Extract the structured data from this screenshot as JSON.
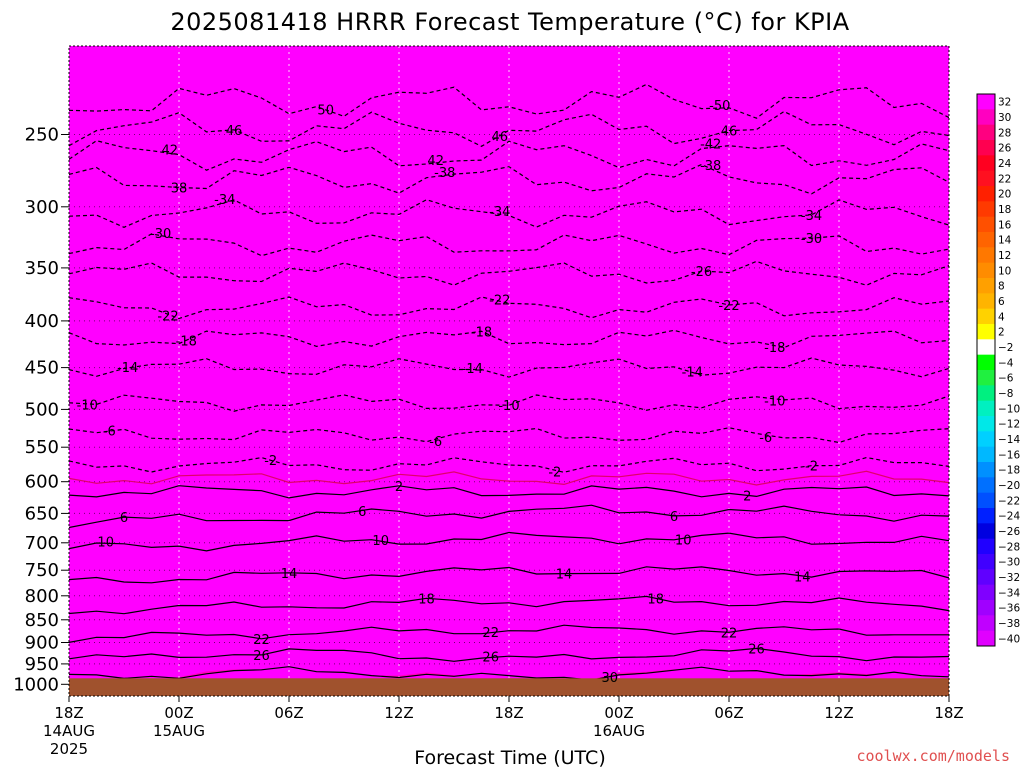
{
  "title": "2025081418 HRRR Forecast Temperature (°C) for KPIA",
  "credit": "coolwx.com/models",
  "chart_data": {
    "type": "heatmap",
    "title": "2025081418 HRRR Forecast Temperature (°C) for KPIA",
    "xlabel": "Forecast Time (UTC)",
    "ylabel": "",
    "y_scale": "log",
    "y_inverted": true,
    "y_ticks": [
      250,
      300,
      350,
      400,
      450,
      500,
      550,
      600,
      650,
      700,
      750,
      800,
      850,
      900,
      950,
      1000
    ],
    "y_range": [
      200,
      1030
    ],
    "surface_pressure": 985,
    "x_range": [
      0,
      48
    ],
    "x_unit": "forecast hour",
    "x_ticks": [
      {
        "hour": 0,
        "lines": [
          "18Z",
          "14AUG",
          "2025"
        ]
      },
      {
        "hour": 6,
        "lines": [
          "00Z",
          "15AUG"
        ]
      },
      {
        "hour": 12,
        "lines": [
          "06Z"
        ]
      },
      {
        "hour": 18,
        "lines": [
          "12Z"
        ]
      },
      {
        "hour": 24,
        "lines": [
          "18Z"
        ]
      },
      {
        "hour": 30,
        "lines": [
          "00Z",
          "16AUG"
        ]
      },
      {
        "hour": 36,
        "lines": [
          "06Z"
        ]
      },
      {
        "hour": 42,
        "lines": [
          "12Z"
        ]
      },
      {
        "hour": 48,
        "lines": [
          "18Z"
        ]
      }
    ],
    "colorbar": {
      "levels": [
        32,
        30,
        28,
        26,
        24,
        22,
        20,
        18,
        16,
        14,
        12,
        10,
        8,
        6,
        4,
        2,
        -2,
        -4,
        -6,
        -8,
        -10,
        -12,
        -14,
        -16,
        -18,
        -20,
        -22,
        -24,
        -26,
        -28,
        -30,
        -32,
        -34,
        -36,
        -38,
        -40
      ],
      "colors": [
        "#ff00ff",
        "#ff00c0",
        "#ff0080",
        "#ff0050",
        "#ff0020",
        "#ff1020",
        "#ff2000",
        "#ff3a00",
        "#ff5000",
        "#ff6400",
        "#ff7800",
        "#ff8c00",
        "#ffa000",
        "#ffb400",
        "#ffd200",
        "#ffff00",
        "#ffffff",
        "#00ff00",
        "#20f040",
        "#00f080",
        "#00f0c0",
        "#00e8e8",
        "#00d0ff",
        "#00b8ff",
        "#0090ff",
        "#0070ff",
        "#0050ff",
        "#0020ff",
        "#0000e0",
        "#2000ff",
        "#4000ff",
        "#6000ff",
        "#8000ff",
        "#a000ff",
        "#c000ff",
        "#e000ff"
      ]
    },
    "contours": [
      {
        "value": 30,
        "color": "black",
        "dashed": false,
        "labels": [
          {
            "hour": 29.5,
            "text": "30"
          }
        ]
      },
      {
        "value": 26,
        "color": "black",
        "dashed": false,
        "labels": [
          {
            "hour": 10.5,
            "text": "26"
          },
          {
            "hour": 23.0,
            "text": "26"
          },
          {
            "hour": 37.5,
            "text": "26"
          }
        ]
      },
      {
        "value": 22,
        "color": "black",
        "dashed": false,
        "labels": [
          {
            "hour": 10.5,
            "text": "22"
          },
          {
            "hour": 23.0,
            "text": "22"
          },
          {
            "hour": 36.0,
            "text": "22"
          }
        ]
      },
      {
        "value": 18,
        "color": "black",
        "dashed": false,
        "labels": [
          {
            "hour": 19.5,
            "text": "18"
          },
          {
            "hour": 32.0,
            "text": "18"
          }
        ]
      },
      {
        "value": 14,
        "color": "black",
        "dashed": false,
        "labels": [
          {
            "hour": 12.0,
            "text": "14"
          },
          {
            "hour": 27.0,
            "text": "14"
          },
          {
            "hour": 40.0,
            "text": "14"
          }
        ]
      },
      {
        "value": 10,
        "color": "black",
        "dashed": false,
        "labels": [
          {
            "hour": 2.0,
            "text": "10"
          },
          {
            "hour": 17.0,
            "text": "10"
          },
          {
            "hour": 33.5,
            "text": "10"
          }
        ]
      },
      {
        "value": 6,
        "color": "black",
        "dashed": false,
        "labels": [
          {
            "hour": 3.0,
            "text": "6"
          },
          {
            "hour": 16.0,
            "text": "6"
          },
          {
            "hour": 33.0,
            "text": "6"
          }
        ]
      },
      {
        "value": 2,
        "color": "black",
        "dashed": false,
        "labels": [
          {
            "hour": 18.0,
            "text": "2"
          },
          {
            "hour": 37.0,
            "text": "2"
          }
        ]
      },
      {
        "value": 0,
        "color": "#e0006a",
        "dashed": false,
        "labels": []
      },
      {
        "value": -2,
        "color": "black",
        "dashed": true,
        "labels": [
          {
            "hour": 11.0,
            "text": "-2"
          },
          {
            "hour": 26.5,
            "text": "-2"
          },
          {
            "hour": 40.5,
            "text": "-2"
          }
        ]
      },
      {
        "value": -6,
        "color": "black",
        "dashed": true,
        "labels": [
          {
            "hour": 2.2,
            "text": "-6"
          },
          {
            "hour": 20.0,
            "text": "-6"
          },
          {
            "hour": 38.0,
            "text": "-6"
          }
        ]
      },
      {
        "value": -10,
        "color": "black",
        "dashed": true,
        "labels": [
          {
            "hour": 1.0,
            "text": "-10"
          },
          {
            "hour": 24.0,
            "text": "-10"
          },
          {
            "hour": 38.5,
            "text": "-10"
          }
        ]
      },
      {
        "value": -14,
        "color": "black",
        "dashed": true,
        "labels": [
          {
            "hour": 3.2,
            "text": "-14"
          },
          {
            "hour": 22.0,
            "text": "-14"
          },
          {
            "hour": 34.0,
            "text": "-14"
          }
        ]
      },
      {
        "value": -18,
        "color": "black",
        "dashed": true,
        "labels": [
          {
            "hour": 6.4,
            "text": "-18"
          },
          {
            "hour": 22.5,
            "text": "-18"
          },
          {
            "hour": 38.5,
            "text": "-18"
          }
        ]
      },
      {
        "value": -22,
        "color": "black",
        "dashed": true,
        "labels": [
          {
            "hour": 5.4,
            "text": "-22"
          },
          {
            "hour": 23.5,
            "text": "-22"
          },
          {
            "hour": 36.0,
            "text": "-22"
          }
        ]
      },
      {
        "value": -26,
        "color": "black",
        "dashed": true,
        "labels": [
          {
            "hour": 34.5,
            "text": "-26"
          }
        ]
      },
      {
        "value": -30,
        "color": "black",
        "dashed": true,
        "labels": [
          {
            "hour": 5.0,
            "text": "-30"
          },
          {
            "hour": 40.5,
            "text": "-30"
          }
        ]
      },
      {
        "value": -34,
        "color": "black",
        "dashed": true,
        "labels": [
          {
            "hour": 8.5,
            "text": "-34"
          },
          {
            "hour": 23.5,
            "text": "-34"
          },
          {
            "hour": 40.5,
            "text": "-34"
          }
        ]
      },
      {
        "value": -38,
        "color": "black",
        "dashed": true,
        "labels": [
          {
            "hour": 6.0,
            "text": "38"
          },
          {
            "hour": 20.5,
            "text": "-38"
          },
          {
            "hour": 35.0,
            "text": "-38"
          }
        ]
      },
      {
        "value": -42,
        "color": "black",
        "dashed": true,
        "labels": [
          {
            "hour": 5.5,
            "text": "42"
          },
          {
            "hour": 20.0,
            "text": "42"
          },
          {
            "hour": 35.0,
            "text": "-42"
          }
        ]
      },
      {
        "value": -46,
        "color": "black",
        "dashed": true,
        "labels": [
          {
            "hour": 9.0,
            "text": "46"
          },
          {
            "hour": 23.5,
            "text": "46"
          },
          {
            "hour": 36.0,
            "text": "46"
          }
        ]
      },
      {
        "value": -50,
        "color": "black",
        "dashed": true,
        "labels": [
          {
            "hour": 14.0,
            "text": "50"
          },
          {
            "hour": 35.5,
            "text": "-50"
          }
        ]
      }
    ]
  }
}
